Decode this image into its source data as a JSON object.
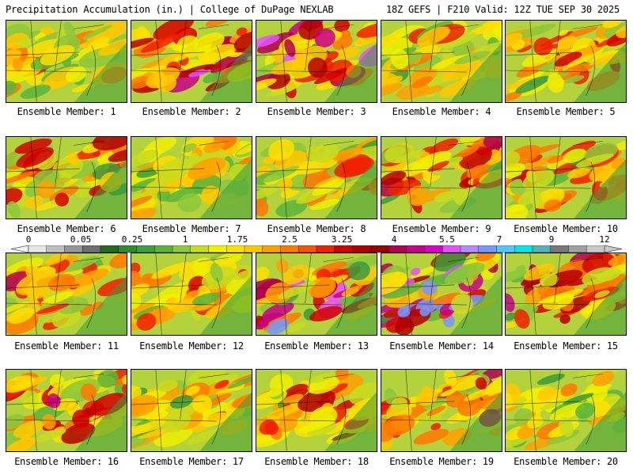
{
  "header": {
    "left_title": "Precipitation Accumulation (in.) | College of DuPage NEXLAB",
    "right_title": "18Z GEFS | F210 Valid: 12Z TUE SEP 30 2025"
  },
  "members": [
    {
      "label": "Ensemble Member: 1",
      "intensity": 0.45
    },
    {
      "label": "Ensemble Member: 2",
      "intensity": 0.75
    },
    {
      "label": "Ensemble Member: 3",
      "intensity": 0.8
    },
    {
      "label": "Ensemble Member: 4",
      "intensity": 0.45
    },
    {
      "label": "Ensemble Member: 5",
      "intensity": 0.55
    },
    {
      "label": "Ensemble Member: 6",
      "intensity": 0.6
    },
    {
      "label": "Ensemble Member: 7",
      "intensity": 0.4
    },
    {
      "label": "Ensemble Member: 8",
      "intensity": 0.55
    },
    {
      "label": "Ensemble Member: 9",
      "intensity": 0.65
    },
    {
      "label": "Ensemble Member: 10",
      "intensity": 0.55
    },
    {
      "label": "Ensemble Member: 11",
      "intensity": 0.6
    },
    {
      "label": "Ensemble Member: 12",
      "intensity": 0.5
    },
    {
      "label": "Ensemble Member: 13",
      "intensity": 0.8
    },
    {
      "label": "Ensemble Member: 14",
      "intensity": 0.95
    },
    {
      "label": "Ensemble Member: 15",
      "intensity": 0.7
    },
    {
      "label": "Ensemble Member: 16",
      "intensity": 0.7
    },
    {
      "label": "Ensemble Member: 17",
      "intensity": 0.5
    },
    {
      "label": "Ensemble Member: 18",
      "intensity": 0.6
    },
    {
      "label": "Ensemble Member: 19",
      "intensity": 0.65
    },
    {
      "label": "Ensemble Member: 20",
      "intensity": 0.45
    }
  ],
  "colorbar": {
    "labels": [
      "0",
      "0.05",
      "0.25",
      "1",
      "1.75",
      "2.5",
      "3.25",
      "4",
      "5.5",
      "7",
      "9",
      "12"
    ],
    "colors": [
      "#e6e6e6",
      "#bebebe",
      "#969696",
      "#6e6e6e",
      "#1e6e1e",
      "#2e8b2e",
      "#3ca03c",
      "#5ab43c",
      "#8cc83c",
      "#c8dc1e",
      "#f0f000",
      "#ffe100",
      "#ffc800",
      "#ffa000",
      "#ff7800",
      "#ff5000",
      "#f02000",
      "#d20000",
      "#b40000",
      "#960000",
      "#b40050",
      "#c8008c",
      "#dc00c8",
      "#e650ff",
      "#b48cff",
      "#7896ff",
      "#50c8ff",
      "#00e6e6",
      "#50b4b4",
      "#787878",
      "#a0a0a0",
      "#c8c8c8"
    ]
  }
}
